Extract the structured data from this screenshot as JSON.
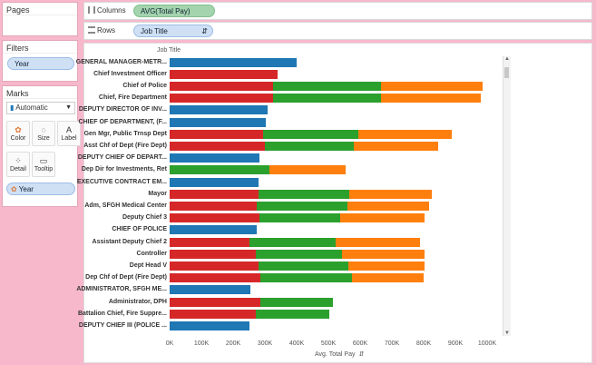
{
  "pages": {
    "title": "Pages"
  },
  "filters": {
    "title": "Filters",
    "pill": "Year"
  },
  "marks": {
    "title": "Marks",
    "type": "Automatic",
    "buttons": {
      "color": "Color",
      "size": "Size",
      "label": "Label",
      "detail": "Detail",
      "tooltip": "Tooltip"
    },
    "color_pill": "Year"
  },
  "shelves": {
    "columns_label": "Columns",
    "columns_pill": "AVG(Total Pay)",
    "rows_label": "Rows",
    "rows_pill": "Job Title"
  },
  "colors": {
    "blue": "#1f77b4",
    "red": "#d62728",
    "green": "#2ca02c",
    "orange": "#ff7f0e",
    "bg": "#f7b8cc"
  },
  "chart_data": {
    "type": "bar",
    "stacked": true,
    "xlabel": "Avg. Total Pay",
    "ylabel": "Job Title",
    "xlim": [
      0,
      1000000
    ],
    "xticks": [
      "0K",
      "100K",
      "200K",
      "300K",
      "400K",
      "500K",
      "600K",
      "700K",
      "800K",
      "900K",
      "1000K"
    ],
    "categories": [
      "GENERAL MANAGER-METR...",
      "Chief Investment Officer",
      "Chief of Police",
      "Chief, Fire Department",
      "DEPUTY DIRECTOR OF INV...",
      "CHIEF OF DEPARTMENT, (F...",
      "Gen Mgr, Public Trnsp Dept",
      "Asst Chf of Dept (Fire Dept)",
      "DEPUTY CHIEF OF DEPART...",
      "Dep Dir for Investments, Ret",
      "EXECUTIVE CONTRACT EM...",
      "Mayor",
      "Adm, SFGH Medical Center",
      "Deputy Chief 3",
      "CHIEF OF POLICE",
      "Assistant Deputy Chief 2",
      "Controller",
      "Dept Head V",
      "Dep Chf of Dept (Fire Dept)",
      "ADMINISTRATOR, SFGH ME...",
      "Administrator, DPH",
      "Battalion Chief, Fire Suppre...",
      "DEPUTY CHIEF III (POLICE ..."
    ],
    "series": [
      {
        "color": "#1f77b4",
        "values": [
          400000,
          0,
          0,
          0,
          308000,
          304000,
          0,
          0,
          283000,
          0,
          280000,
          0,
          0,
          0,
          275000,
          0,
          0,
          0,
          0,
          255000,
          0,
          0,
          250000
        ]
      },
      {
        "color": "#d62728",
        "values": [
          0,
          340000,
          325000,
          325000,
          0,
          0,
          293000,
          300000,
          0,
          0,
          0,
          280000,
          275000,
          282000,
          0,
          252000,
          272000,
          280000,
          285000,
          0,
          285000,
          270000,
          0
        ]
      },
      {
        "color": "#2ca02c",
        "values": [
          0,
          0,
          340000,
          340000,
          0,
          0,
          300000,
          280000,
          0,
          315000,
          0,
          287000,
          285000,
          255000,
          0,
          272000,
          270000,
          282000,
          290000,
          0,
          230000,
          232000,
          0
        ]
      },
      {
        "color": "#ff7f0e",
        "values": [
          0,
          0,
          320000,
          315000,
          0,
          0,
          295000,
          265000,
          0,
          240000,
          0,
          260000,
          257000,
          265000,
          0,
          265000,
          260000,
          242000,
          225000,
          0,
          0,
          0,
          0
        ]
      }
    ]
  }
}
